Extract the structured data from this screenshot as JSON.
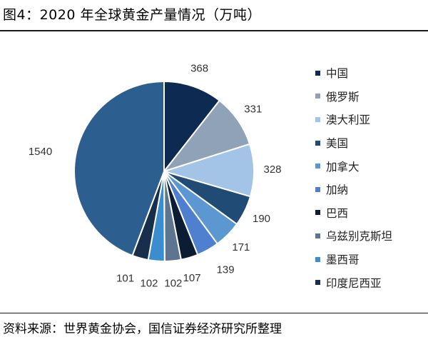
{
  "title": "图4：2020 年全球黄金产量情况（万吨）",
  "source": "资料来源：世界黄金协会，国信证券经济研究所整理",
  "chart_data": {
    "type": "pie",
    "title": "图4：2020 年全球黄金产量情况（万吨）",
    "unit": "万吨",
    "legend_position": "right",
    "start": "12 o'clock",
    "direction": "clockwise",
    "slices": [
      {
        "label": "中国",
        "value": 368,
        "color": "#0d2b52"
      },
      {
        "label": "俄罗斯",
        "value": 331,
        "color": "#8fa2b8"
      },
      {
        "label": "澳大利亚",
        "value": 328,
        "color": "#a3c4e6"
      },
      {
        "label": "美国",
        "value": 190,
        "color": "#1f4b74"
      },
      {
        "label": "加拿大",
        "value": 171,
        "color": "#5b98d2"
      },
      {
        "label": "加纳",
        "value": 139,
        "color": "#4f7fcf"
      },
      {
        "label": "巴西",
        "value": 107,
        "color": "#0b1c33"
      },
      {
        "label": "乌兹别克斯坦",
        "value": 102,
        "color": "#5d7590"
      },
      {
        "label": "墨西哥",
        "value": 102,
        "color": "#3a8ed0"
      },
      {
        "label": "印度尼西亚",
        "value": 101,
        "color": "#172f4c"
      },
      {
        "label": "",
        "value": 1540,
        "color": "#2c5f8f"
      }
    ]
  }
}
